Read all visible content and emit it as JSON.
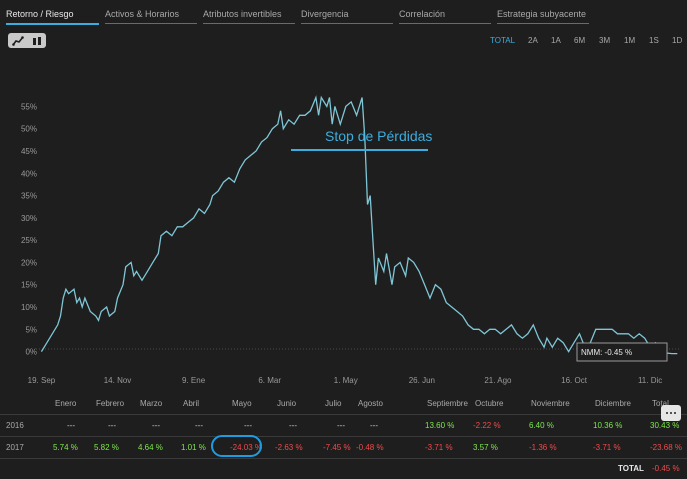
{
  "tabs": [
    {
      "label": "Retorno / Riesgo",
      "active": true
    },
    {
      "label": "Activos & Horarios",
      "active": false
    },
    {
      "label": "Atributos invertibles",
      "active": false
    },
    {
      "label": "Divergencia",
      "active": false
    },
    {
      "label": "Correlación",
      "active": false
    },
    {
      "label": "Estrategia subyacente",
      "active": false
    }
  ],
  "chart_toggle": {
    "icons": [
      "line-chart-icon",
      "bar-chart-icon"
    ]
  },
  "ranges": [
    {
      "label": "TOTAL",
      "active": true
    },
    {
      "label": "2A",
      "active": false
    },
    {
      "label": "1A",
      "active": false
    },
    {
      "label": "6M",
      "active": false
    },
    {
      "label": "3M",
      "active": false
    },
    {
      "label": "1M",
      "active": false
    },
    {
      "label": "1S",
      "active": false
    },
    {
      "label": "1D",
      "active": false
    }
  ],
  "annotation": {
    "label": "Stop de Pérdidas",
    "color": "#3aaee0"
  },
  "nmm_box": {
    "label": "NMM: -0.45 %"
  },
  "chart_data": {
    "type": "line",
    "line_color": "#7fc6d6",
    "ylim": [
      -3,
      58
    ],
    "y_ticks": [
      "0%",
      "5%",
      "10%",
      "15%",
      "20%",
      "25%",
      "30%",
      "35%",
      "40%",
      "45%",
      "50%",
      "55%"
    ],
    "y_tick_values": [
      0,
      5,
      10,
      15,
      20,
      25,
      30,
      35,
      40,
      45,
      50,
      55
    ],
    "x_ticks": [
      "19. Sep",
      "14. Nov",
      "9. Ene",
      "6. Mar",
      "1. May",
      "26. Jun",
      "21. Ago",
      "16. Oct",
      "11. Dic"
    ],
    "x_tick_days": [
      0,
      56,
      112,
      168,
      224,
      280,
      336,
      392,
      448
    ],
    "x_range_days": [
      -4,
      470
    ],
    "series": [
      {
        "points": [
          [
            0,
            0
          ],
          [
            4,
            2
          ],
          [
            8,
            4
          ],
          [
            12,
            6
          ],
          [
            14,
            8
          ],
          [
            16,
            12
          ],
          [
            18,
            14
          ],
          [
            20,
            13
          ],
          [
            24,
            14
          ],
          [
            26,
            11
          ],
          [
            28,
            12
          ],
          [
            30,
            10
          ],
          [
            32,
            12
          ],
          [
            36,
            9
          ],
          [
            40,
            8
          ],
          [
            42,
            7
          ],
          [
            44,
            9
          ],
          [
            48,
            10
          ],
          [
            50,
            8
          ],
          [
            54,
            9
          ],
          [
            56,
            12
          ],
          [
            60,
            15
          ],
          [
            62,
            19
          ],
          [
            66,
            20
          ],
          [
            68,
            17
          ],
          [
            70,
            18
          ],
          [
            74,
            16
          ],
          [
            78,
            18
          ],
          [
            82,
            20
          ],
          [
            86,
            22
          ],
          [
            88,
            26
          ],
          [
            92,
            27
          ],
          [
            96,
            26
          ],
          [
            100,
            28
          ],
          [
            104,
            28
          ],
          [
            108,
            29
          ],
          [
            112,
            30
          ],
          [
            116,
            32
          ],
          [
            120,
            31
          ],
          [
            124,
            33
          ],
          [
            126,
            35
          ],
          [
            130,
            36
          ],
          [
            134,
            38
          ],
          [
            138,
            39
          ],
          [
            142,
            38
          ],
          [
            146,
            41
          ],
          [
            150,
            43
          ],
          [
            154,
            44
          ],
          [
            158,
            45
          ],
          [
            162,
            47
          ],
          [
            166,
            48
          ],
          [
            170,
            50
          ],
          [
            174,
            51
          ],
          [
            176,
            54
          ],
          [
            178,
            50
          ],
          [
            182,
            52
          ],
          [
            186,
            51
          ],
          [
            190,
            53
          ],
          [
            194,
            53
          ],
          [
            198,
            54
          ],
          [
            202,
            57
          ],
          [
            204,
            53
          ],
          [
            206,
            57
          ],
          [
            210,
            55
          ],
          [
            212,
            57
          ],
          [
            214,
            51
          ],
          [
            216,
            55
          ],
          [
            220,
            51
          ],
          [
            224,
            55
          ],
          [
            228,
            56
          ],
          [
            232,
            53
          ],
          [
            236,
            57
          ],
          [
            238,
            48
          ],
          [
            240,
            33
          ],
          [
            242,
            35
          ],
          [
            244,
            25
          ],
          [
            246,
            15
          ],
          [
            248,
            21
          ],
          [
            252,
            18
          ],
          [
            254,
            22
          ],
          [
            258,
            15
          ],
          [
            260,
            19
          ],
          [
            264,
            20
          ],
          [
            268,
            17
          ],
          [
            270,
            21
          ],
          [
            274,
            20
          ],
          [
            278,
            18
          ],
          [
            282,
            15
          ],
          [
            286,
            12
          ],
          [
            290,
            15
          ],
          [
            294,
            14
          ],
          [
            298,
            11
          ],
          [
            302,
            10
          ],
          [
            306,
            9
          ],
          [
            310,
            8
          ],
          [
            314,
            6
          ],
          [
            318,
            5
          ],
          [
            322,
            5
          ],
          [
            326,
            4
          ],
          [
            330,
            5
          ],
          [
            334,
            5
          ],
          [
            338,
            4
          ],
          [
            342,
            5
          ],
          [
            346,
            6
          ],
          [
            350,
            4
          ],
          [
            354,
            3
          ],
          [
            358,
            4
          ],
          [
            362,
            6
          ],
          [
            366,
            3
          ],
          [
            370,
            1
          ],
          [
            372,
            3
          ],
          [
            374,
            2
          ],
          [
            376,
            1
          ],
          [
            380,
            3
          ],
          [
            384,
            2
          ],
          [
            388,
            0
          ],
          [
            392,
            2
          ],
          [
            396,
            4
          ],
          [
            400,
            1
          ],
          [
            404,
            2
          ],
          [
            408,
            5
          ],
          [
            412,
            5
          ],
          [
            416,
            5
          ],
          [
            420,
            5
          ],
          [
            424,
            4
          ],
          [
            428,
            4
          ],
          [
            432,
            4
          ],
          [
            436,
            3
          ],
          [
            440,
            4
          ],
          [
            444,
            3
          ],
          [
            448,
            1
          ],
          [
            452,
            2
          ],
          [
            456,
            1
          ],
          [
            460,
            -0.3
          ],
          [
            464,
            -0.45
          ],
          [
            468,
            -0.45
          ]
        ]
      }
    ]
  },
  "table": {
    "months": [
      "Enero",
      "Febrero",
      "Marzo",
      "Abril",
      "Mayo",
      "Junio",
      "Julio",
      "Agosto",
      "Septiembre",
      "Octubre",
      "Noviembre",
      "Diciembre",
      "Total"
    ],
    "rows": [
      {
        "year": "2016",
        "cells": [
          {
            "v": "---",
            "c": "mid"
          },
          {
            "v": "---",
            "c": "mid"
          },
          {
            "v": "---",
            "c": "mid"
          },
          {
            "v": "---",
            "c": "mid"
          },
          {
            "v": "---",
            "c": "mid"
          },
          {
            "v": "---",
            "c": "mid"
          },
          {
            "v": "---",
            "c": "mid"
          },
          {
            "v": "---",
            "c": "mid"
          },
          {
            "v": "13.60 %",
            "c": "pos"
          },
          {
            "v": "-2.22 %",
            "c": "neg"
          },
          {
            "v": "6.40 %",
            "c": "pos"
          },
          {
            "v": "10.36 %",
            "c": "pos"
          },
          {
            "v": "30.43 %",
            "c": "pos"
          }
        ]
      },
      {
        "year": "2017",
        "cells": [
          {
            "v": "5.74 %",
            "c": "pos"
          },
          {
            "v": "5.82 %",
            "c": "pos"
          },
          {
            "v": "4.64 %",
            "c": "pos"
          },
          {
            "v": "1.01 %",
            "c": "pos"
          },
          {
            "v": "-24.03 %",
            "c": "neg"
          },
          {
            "v": "-2.63 %",
            "c": "neg"
          },
          {
            "v": "-7.45 %",
            "c": "neg"
          },
          {
            "v": "-0.48 %",
            "c": "neg"
          },
          {
            "v": "-3.71 %",
            "c": "neg"
          },
          {
            "v": "3.57 %",
            "c": "pos"
          },
          {
            "v": "-1.36 %",
            "c": "neg"
          },
          {
            "v": "-3.71 %",
            "c": "neg"
          },
          {
            "v": "-23.68 %",
            "c": "neg"
          }
        ]
      }
    ],
    "total": {
      "label": "TOTAL",
      "value": "-0.45 %"
    }
  },
  "colors": {
    "accent": "#3aaee0",
    "positive": "#7ee84a",
    "negative": "#f04b4b",
    "line": "#7fc6d6",
    "background": "#1e1e1e"
  }
}
